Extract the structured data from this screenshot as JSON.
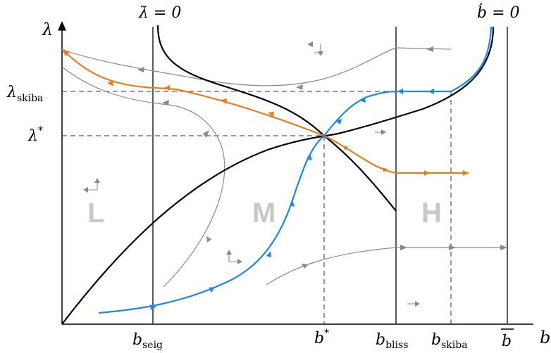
{
  "colors": {
    "axis": "#000000",
    "separatrix_black": "#000000",
    "orange_path": "#E67E1E",
    "blue_path": "#1E88E5",
    "gray_trajectory": "#8a8a8a",
    "region_label": "#c8c8c8"
  },
  "axes": {
    "y_label": "λ",
    "x_label": "b"
  },
  "nullclines": {
    "lambda_dot_label": "λ̇ = 0",
    "b_dot_label": "ḃ = 0"
  },
  "y_ticks": {
    "lambda_skiba": {
      "base": "λ",
      "sub": "skiba"
    },
    "lambda_star": {
      "base": "λ",
      "sup": "*"
    }
  },
  "x_ticks": {
    "b_seig": {
      "base": "b",
      "sub": "seig"
    },
    "b_star": {
      "base": "b",
      "sup": "*"
    },
    "b_bliss": {
      "base": "b",
      "sub": "bliss"
    },
    "b_skiba": {
      "base": "b",
      "sub": "skiba"
    },
    "b_bar": {
      "base": "b"
    }
  },
  "regions": {
    "left": "L",
    "middle": "M",
    "high": "H"
  }
}
